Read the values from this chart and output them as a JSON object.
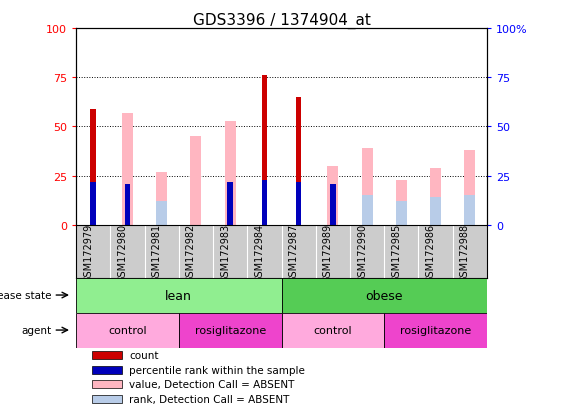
{
  "title": "GDS3396 / 1374904_at",
  "samples": [
    "GSM172979",
    "GSM172980",
    "GSM172981",
    "GSM172982",
    "GSM172983",
    "GSM172984",
    "GSM172987",
    "GSM172989",
    "GSM172990",
    "GSM172985",
    "GSM172986",
    "GSM172988"
  ],
  "count": [
    59,
    0,
    0,
    0,
    0,
    76,
    65,
    0,
    0,
    0,
    0,
    0
  ],
  "percentile_rank": [
    22,
    21,
    0,
    0,
    22,
    23,
    22,
    21,
    0,
    0,
    0,
    0
  ],
  "value_absent": [
    0,
    57,
    27,
    45,
    53,
    0,
    0,
    30,
    39,
    23,
    29,
    38
  ],
  "rank_absent": [
    0,
    0,
    12,
    0,
    0,
    0,
    0,
    0,
    15,
    12,
    14,
    15
  ],
  "disease_state": [
    {
      "label": "lean",
      "start": 0,
      "end": 6,
      "color": "#90EE90"
    },
    {
      "label": "obese",
      "start": 6,
      "end": 12,
      "color": "#55CC55"
    }
  ],
  "agent": [
    {
      "label": "control",
      "start": 0,
      "end": 3,
      "color": "#FFAADD"
    },
    {
      "label": "rosiglitazone",
      "start": 3,
      "end": 6,
      "color": "#EE44CC"
    },
    {
      "label": "control",
      "start": 6,
      "end": 9,
      "color": "#FFAADD"
    },
    {
      "label": "rosiglitazone",
      "start": 9,
      "end": 12,
      "color": "#EE44CC"
    }
  ],
  "count_color": "#CC0000",
  "percentile_color": "#0000BB",
  "value_absent_color": "#FFB6C1",
  "rank_absent_color": "#B8CCE8",
  "grid_lines": [
    25,
    50,
    75
  ],
  "ylim": [
    0,
    100
  ],
  "yticks": [
    0,
    25,
    50,
    75,
    100
  ],
  "ytick_labels_left": [
    "0",
    "25",
    "50",
    "75",
    "100"
  ],
  "ytick_labels_right": [
    "0",
    "25",
    "50",
    "75",
    "100%"
  ],
  "xlabel_fontsize": 7,
  "title_fontsize": 11,
  "tick_area_bg": "#CCCCCC",
  "legend_items": [
    {
      "color": "#CC0000",
      "label": "count"
    },
    {
      "color": "#0000BB",
      "label": "percentile rank within the sample"
    },
    {
      "color": "#FFB6C1",
      "label": "value, Detection Call = ABSENT"
    },
    {
      "color": "#B8CCE8",
      "label": "rank, Detection Call = ABSENT"
    }
  ]
}
